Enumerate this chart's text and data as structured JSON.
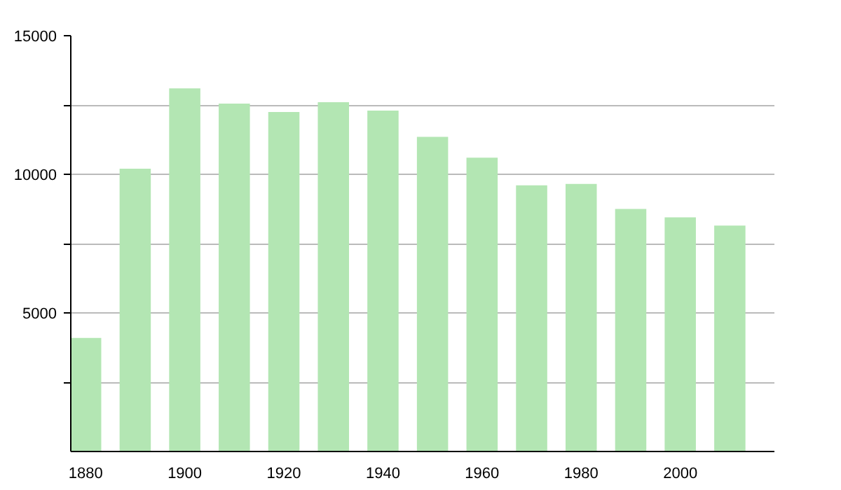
{
  "chart_data": {
    "type": "bar",
    "x": [
      1880,
      1890,
      1900,
      1910,
      1920,
      1930,
      1940,
      1950,
      1960,
      1970,
      1980,
      1990,
      2000,
      2010
    ],
    "values": [
      4100,
      10200,
      13100,
      12550,
      12250,
      12600,
      12300,
      11350,
      10600,
      9600,
      9650,
      8750,
      8450,
      8150
    ],
    "color": "#b3e6b3",
    "xlim": [
      1877,
      2019
    ],
    "xticks": [
      1880,
      1900,
      1920,
      1940,
      1960,
      1980,
      2000
    ],
    "ylim": [
      0,
      15000
    ],
    "yticks": [
      {
        "value": 2500,
        "label": null
      },
      5000,
      {
        "value": 7500,
        "label": null
      },
      10000,
      {
        "value": 12500,
        "label": null
      },
      15000
    ],
    "grid": "y"
  }
}
